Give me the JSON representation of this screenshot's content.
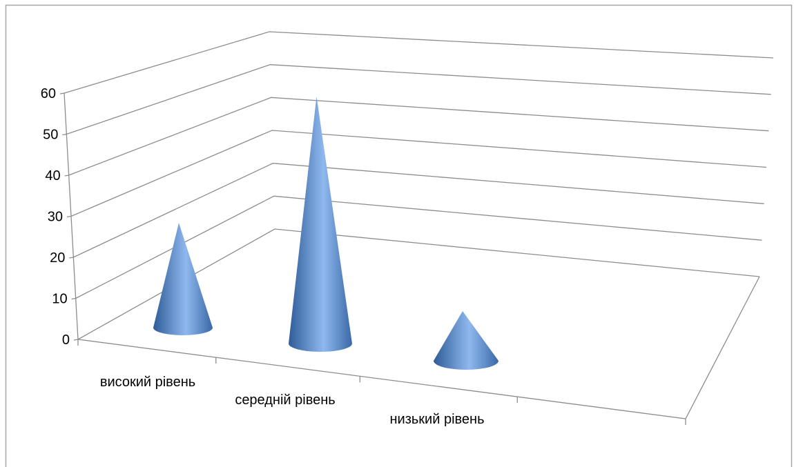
{
  "chart_data": {
    "type": "bar",
    "subtype": "3d-cone",
    "title": "",
    "xlabel": "",
    "ylabel": "",
    "categories": [
      "високий рівень",
      "середній рівень",
      "низький рівень"
    ],
    "series": [
      {
        "values": [
          27,
          61,
          12
        ]
      }
    ],
    "ylim": [
      0,
      60
    ],
    "yticks": [
      "0",
      "10",
      "20",
      "30",
      "40",
      "50",
      "60"
    ],
    "grid": true,
    "legend": "none",
    "colors": {
      "cone_dark": "#2f5c98",
      "cone_mid": "#4f81bd",
      "cone_light": "#8fb8ee",
      "grid": "#8c8c8c"
    }
  }
}
